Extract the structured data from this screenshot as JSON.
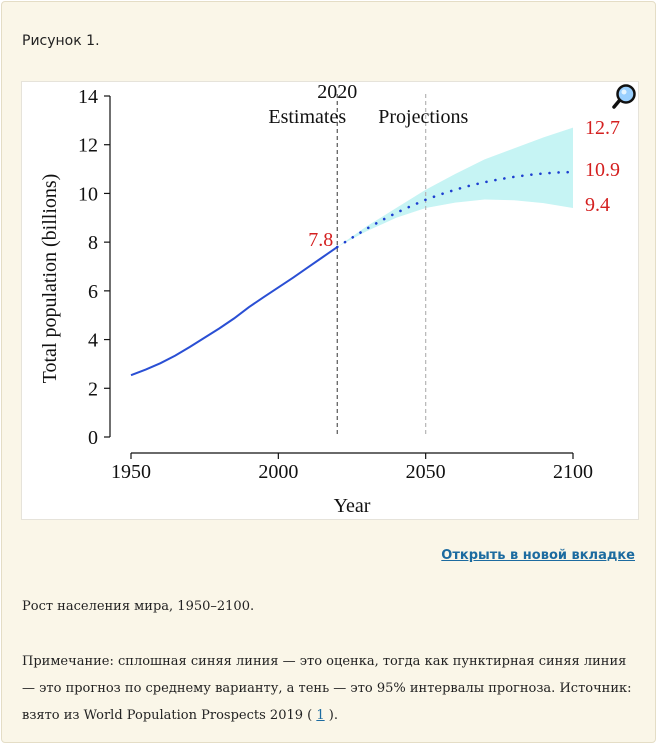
{
  "figure": {
    "label": "Рисунок",
    "number": "1."
  },
  "open_link": "Открыть в новой вкладке",
  "caption": "Рост населения мира, 1950–2100.",
  "note": {
    "text_before": "Примечание: сплошная синяя линия — это оценка, тогда как пунктирная синяя линия — это прогноз по среднему варианту, а тень — это 95% интервалы прогноза. Источник: взято из World Population Prospects 2019 (",
    "ref": "1",
    "text_after": ")."
  },
  "icons": {
    "zoom": "magnifier-icon"
  },
  "colors": {
    "estimate_line": "#2a4fd4",
    "projection_dots": "#1d3fd0",
    "interval_band": "#c6f4f4",
    "annotation_red": "#d42020"
  },
  "chart_data": {
    "type": "line",
    "xlabel": "Year",
    "ylabel": "Total population (billions)",
    "xlim": [
      1950,
      2100
    ],
    "ylim": [
      0,
      14
    ],
    "x_ticks": [
      "1950",
      "2000",
      "2050",
      "2100"
    ],
    "y_ticks": [
      "0",
      "2",
      "4",
      "6",
      "8",
      "10",
      "12",
      "14"
    ],
    "vlines": [
      {
        "x": 2020,
        "label": "2020",
        "style": "dashed"
      },
      {
        "x": 2050,
        "style": "dashed-light"
      }
    ],
    "region_labels": [
      "Estimates",
      "Projections"
    ],
    "annotations": [
      {
        "x": 2020,
        "y": 7.8,
        "text": "7.8"
      },
      {
        "x": 2100,
        "y": 12.7,
        "text": "12.7"
      },
      {
        "x": 2100,
        "y": 10.9,
        "text": "10.9"
      },
      {
        "x": 2100,
        "y": 9.4,
        "text": "9.4"
      }
    ],
    "estimates": {
      "x": [
        1950,
        1955,
        1960,
        1965,
        1970,
        1975,
        1980,
        1985,
        1990,
        1995,
        2000,
        2005,
        2010,
        2015,
        2020
      ],
      "y": [
        2.54,
        2.77,
        3.03,
        3.34,
        3.7,
        4.08,
        4.46,
        4.87,
        5.33,
        5.74,
        6.14,
        6.54,
        6.96,
        7.38,
        7.8
      ]
    },
    "projection_median": {
      "x": [
        2020,
        2025,
        2030,
        2035,
        2040,
        2045,
        2050,
        2055,
        2060,
        2065,
        2070,
        2075,
        2080,
        2085,
        2090,
        2095,
        2100
      ],
      "y": [
        7.8,
        8.18,
        8.55,
        8.89,
        9.2,
        9.48,
        9.74,
        9.96,
        10.15,
        10.32,
        10.46,
        10.58,
        10.68,
        10.76,
        10.82,
        10.86,
        10.88
      ]
    },
    "interval_upper": {
      "x": [
        2020,
        2030,
        2040,
        2050,
        2060,
        2070,
        2080,
        2090,
        2100
      ],
      "y": [
        7.8,
        8.65,
        9.4,
        10.15,
        10.8,
        11.4,
        11.85,
        12.3,
        12.7
      ]
    },
    "interval_lower": {
      "x": [
        2020,
        2030,
        2040,
        2050,
        2060,
        2070,
        2080,
        2090,
        2100
      ],
      "y": [
        7.8,
        8.45,
        9.0,
        9.4,
        9.62,
        9.75,
        9.72,
        9.6,
        9.4
      ]
    }
  }
}
